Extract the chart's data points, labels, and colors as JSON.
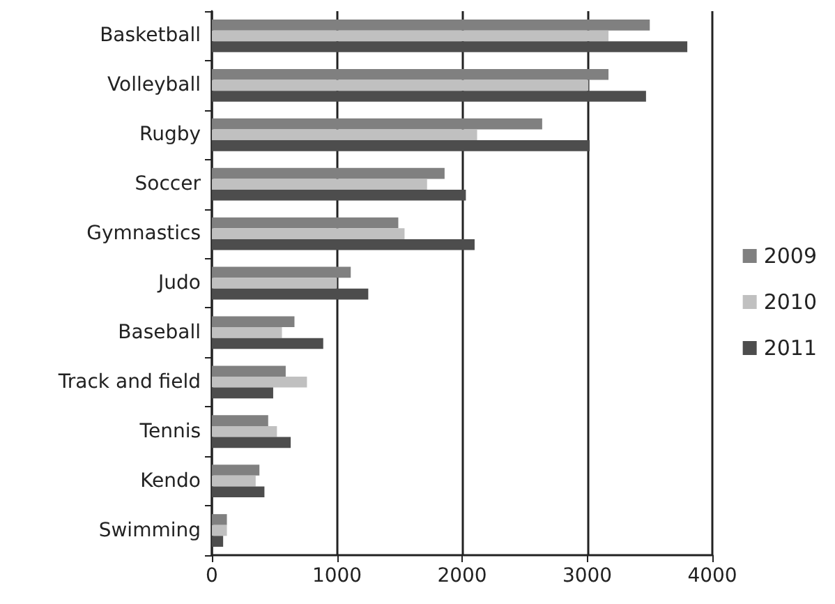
{
  "chart_data": {
    "type": "bar",
    "orientation": "horizontal",
    "categories": [
      "Basketball",
      "Volleyball",
      "Rugby",
      "Soccer",
      "Gymnastics",
      "Judo",
      "Baseball",
      "Track and field",
      "Tennis",
      "Kendo",
      "Swimming"
    ],
    "series": [
      {
        "name": "2009",
        "color": "#808080",
        "values": [
          3500,
          3170,
          2640,
          1860,
          1490,
          1110,
          660,
          590,
          450,
          380,
          120
        ]
      },
      {
        "name": "2010",
        "color": "#c0c0c0",
        "values": [
          3170,
          3010,
          2120,
          1720,
          1540,
          1000,
          560,
          760,
          520,
          350,
          120
        ]
      },
      {
        "name": "2011",
        "color": "#4d4d4d",
        "values": [
          3800,
          3470,
          3020,
          2030,
          2100,
          1250,
          890,
          490,
          630,
          420,
          90
        ]
      }
    ],
    "xlim": [
      0,
      4000
    ],
    "xticks": [
      0,
      1000,
      2000,
      3000,
      4000
    ],
    "grid": "x",
    "legend": "right"
  }
}
